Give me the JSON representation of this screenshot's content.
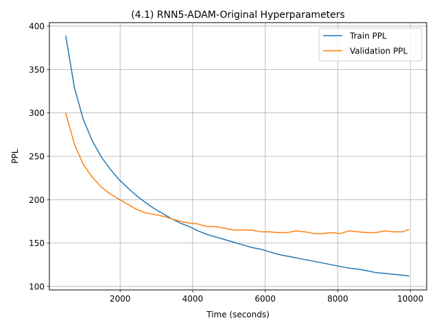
{
  "chart_data": {
    "type": "line",
    "title": "(4.1) RNN5-ADAM-Original Hyperparameters",
    "xlabel": "Time (seconds)",
    "ylabel": "PPL",
    "xlim": [
      50,
      10450
    ],
    "ylim": [
      96,
      404
    ],
    "xticks": [
      2000,
      4000,
      6000,
      8000,
      10000
    ],
    "yticks": [
      100,
      150,
      200,
      250,
      300,
      350,
      400
    ],
    "grid": true,
    "legend_position": "top-right",
    "series": [
      {
        "name": "Train PPL",
        "color": "#1f77b4",
        "x": [
          500,
          740,
          980,
          1230,
          1470,
          1710,
          1950,
          2200,
          2440,
          2690,
          2930,
          3180,
          3420,
          3660,
          3910,
          4150,
          4400,
          4640,
          4890,
          5130,
          5380,
          5620,
          5870,
          6110,
          6360,
          6600,
          6850,
          7090,
          7340,
          7580,
          7830,
          8070,
          8320,
          8560,
          8810,
          9050,
          9300,
          9540,
          9790,
          9970
        ],
        "y": [
          389,
          329,
          293,
          268,
          250,
          236,
          224,
          214,
          205,
          197,
          190,
          184,
          178,
          173,
          169,
          164,
          160,
          157,
          154,
          151,
          148,
          145,
          143,
          140,
          137,
          135,
          133,
          131,
          129,
          127,
          125,
          123,
          121,
          120,
          118,
          116,
          115,
          114,
          113,
          112
        ]
      },
      {
        "name": "Validation PPL",
        "color": "#ff7f0e",
        "x": [
          500,
          740,
          980,
          1230,
          1470,
          1710,
          1950,
          2200,
          2440,
          2690,
          2930,
          3180,
          3420,
          3660,
          3910,
          4150,
          4400,
          4640,
          4890,
          5130,
          5380,
          5620,
          5870,
          6110,
          6360,
          6600,
          6850,
          7090,
          7340,
          7580,
          7830,
          8070,
          8320,
          8560,
          8810,
          9050,
          9300,
          9540,
          9790,
          9970
        ],
        "y": [
          300,
          264,
          241,
          226,
          215,
          207,
          201,
          195,
          189,
          185,
          183,
          181,
          178,
          175,
          173,
          172,
          169,
          169,
          167,
          165,
          165,
          165,
          163,
          163,
          162,
          162,
          164,
          163,
          161,
          161,
          162,
          161,
          164,
          163,
          162,
          162,
          164,
          163,
          163,
          166
        ]
      }
    ]
  }
}
